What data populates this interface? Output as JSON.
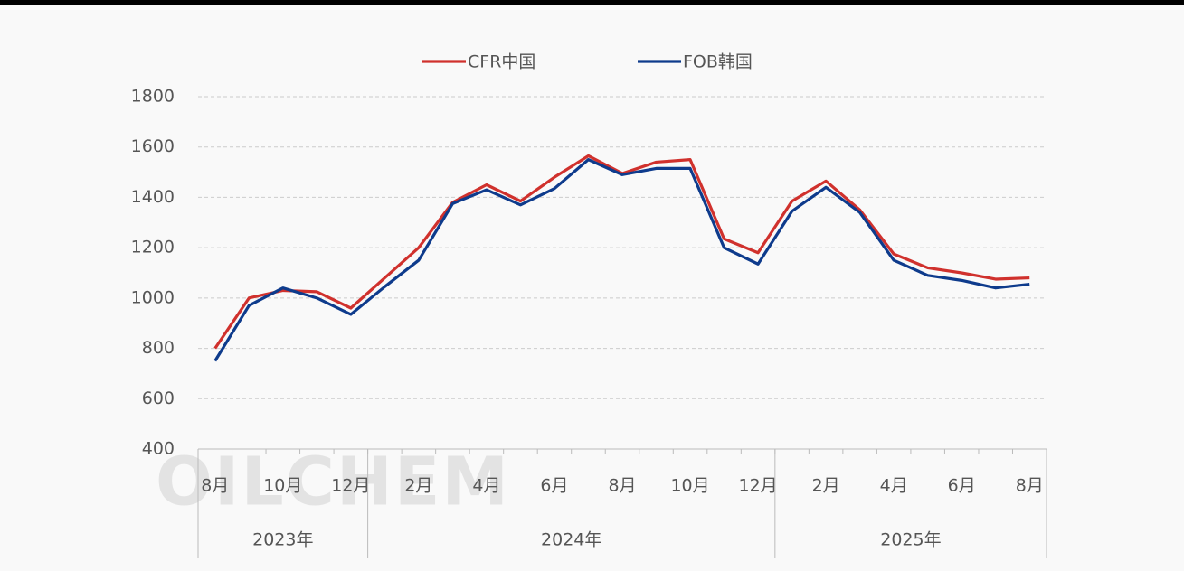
{
  "chart_data": {
    "type": "line",
    "watermark": "OILCHEM",
    "categories": [
      "8月",
      null,
      "10月",
      null,
      "12月",
      null,
      "2月",
      null,
      "4月",
      null,
      "6月",
      null,
      "8月",
      null,
      "10月",
      null,
      "12月",
      null,
      "2月",
      null,
      "4月",
      null,
      "6月",
      null,
      "8月"
    ],
    "groups": [
      {
        "label": "2023年",
        "span": 5
      },
      {
        "label": "2024年",
        "span": 12
      },
      {
        "label": "2025年",
        "span": 8
      }
    ],
    "series": [
      {
        "name": "CFR中国",
        "color": "#d0312d",
        "values": [
          800,
          1000,
          1030,
          1025,
          960,
          1080,
          1200,
          1380,
          1450,
          1385,
          1480,
          1565,
          1495,
          1540,
          1550,
          1235,
          1180,
          1385,
          1465,
          1350,
          1175,
          1120,
          1100,
          1075,
          1080
        ]
      },
      {
        "name": "FOB韩国",
        "color": "#0e3b8c",
        "values": [
          750,
          970,
          1040,
          1000,
          935,
          1045,
          1150,
          1375,
          1430,
          1370,
          1435,
          1550,
          1490,
          1515,
          1515,
          1200,
          1135,
          1345,
          1440,
          1340,
          1150,
          1090,
          1070,
          1040,
          1055
        ]
      }
    ],
    "ylim": [
      400,
      1800
    ],
    "yticks": [
      400,
      600,
      800,
      1000,
      1200,
      1400,
      1600,
      1800
    ],
    "grid": true,
    "legend": "top"
  }
}
